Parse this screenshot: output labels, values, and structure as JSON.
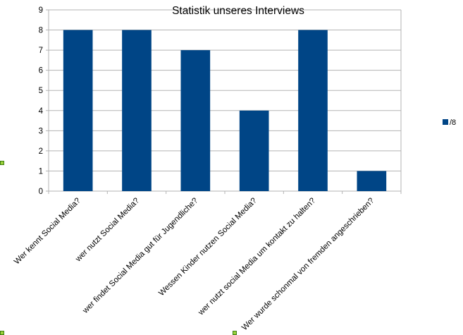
{
  "chart_data": {
    "type": "bar",
    "title": "Statistik unseres Interviews",
    "categories": [
      "Wer kennt Social Media?",
      "wer nutzt Social Media?",
      "wer findet Social Media gut für Jugendliche?",
      "Wessen Kinder nutzen Social Media?",
      "wer nutzt social Media um kontakt zu halten?",
      "Wer wurde schonmal von fremden angeschrieben?"
    ],
    "series": [
      {
        "name": "/8",
        "values": [
          8,
          8,
          7,
          4,
          8,
          1
        ],
        "color": "#004586"
      }
    ],
    "ylim": [
      0,
      9
    ],
    "yticks": [
      "0",
      "1",
      "2",
      "3",
      "4",
      "5",
      "6",
      "7",
      "8",
      "9"
    ],
    "xlabel": "",
    "ylabel": "",
    "grid": true,
    "legend": "right"
  }
}
